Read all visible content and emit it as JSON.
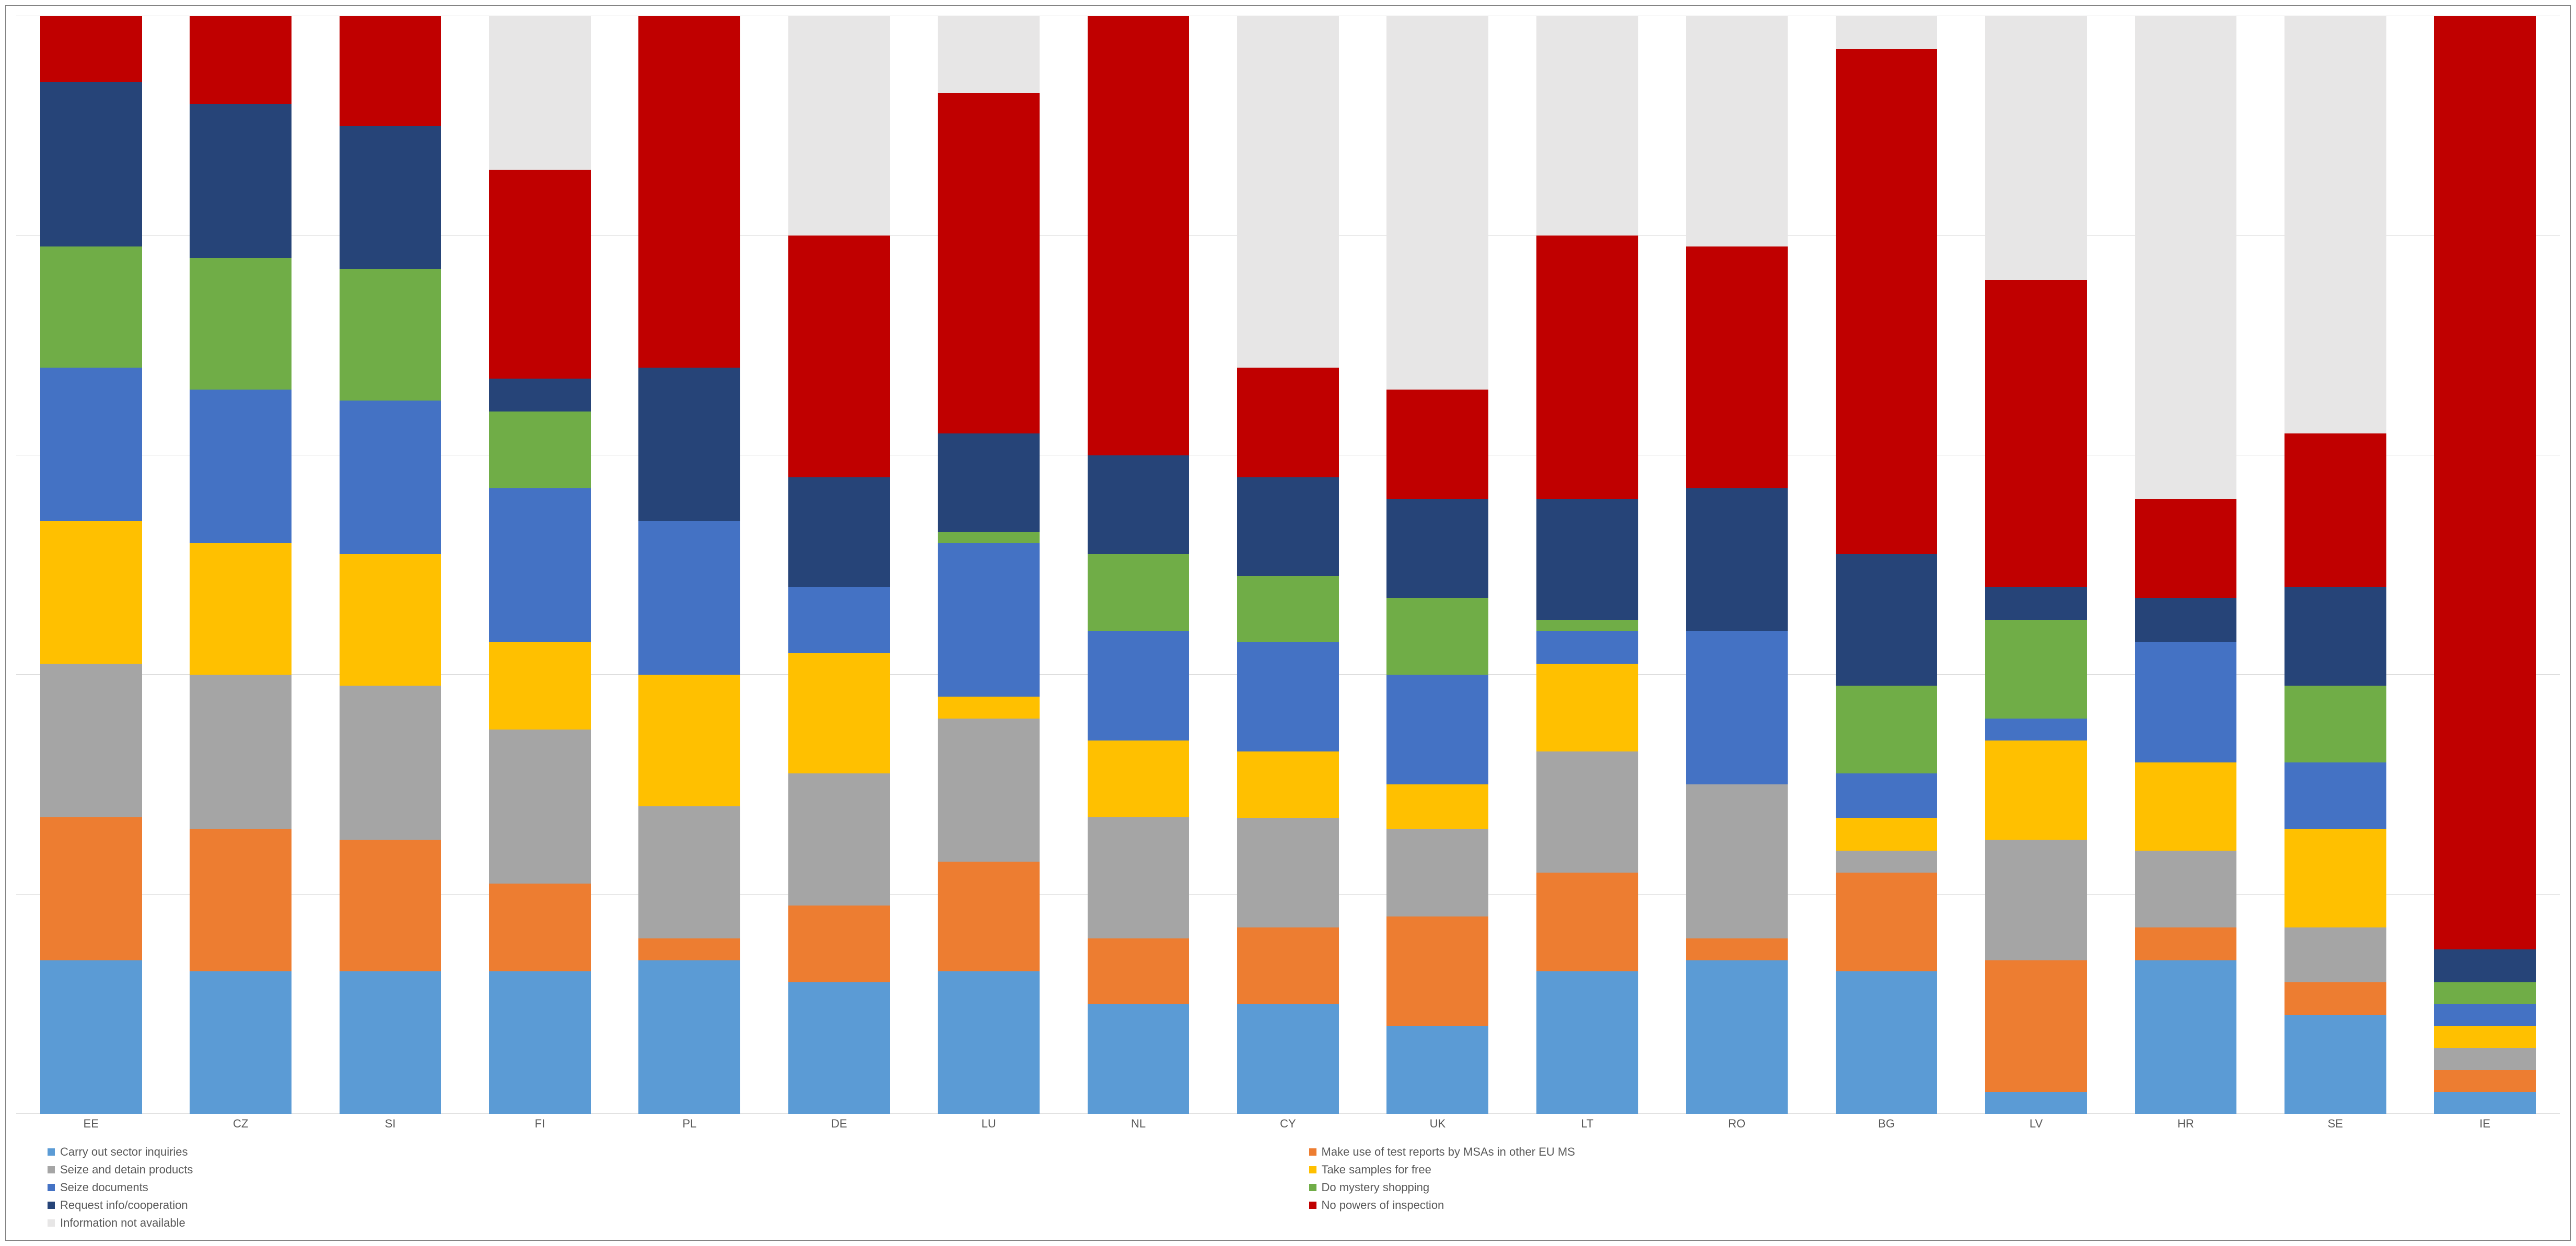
{
  "chart": {
    "type": "stacked-bar",
    "background_color": "#ffffff",
    "grid_color": "#d9d9d9",
    "border_color": "#808080",
    "label_color": "#595959",
    "label_fontsize": 22,
    "ymax": 100,
    "gridlines": [
      0,
      20,
      40,
      60,
      80,
      100
    ],
    "series": [
      {
        "key": "carry_out",
        "label": "Carry out sector inquiries",
        "color": "#5b9bd5"
      },
      {
        "key": "make_use",
        "label": "Make use of test reports by MSAs in other EU MS",
        "color": "#ed7d31"
      },
      {
        "key": "seize_detain",
        "label": "Seize and detain products",
        "color": "#a5a5a5"
      },
      {
        "key": "take_samples",
        "label": "Take samples for free",
        "color": "#ffc000"
      },
      {
        "key": "seize_docs",
        "label": "Seize documents",
        "color": "#4472c4"
      },
      {
        "key": "mystery",
        "label": "Do mystery shopping",
        "color": "#70ad47"
      },
      {
        "key": "request_info",
        "label": "Request info/cooperation",
        "color": "#264478"
      },
      {
        "key": "no_powers",
        "label": "No powers of inspection",
        "color": "#c00000"
      },
      {
        "key": "info_na",
        "label": "Information not available",
        "color": "#e7e6e6"
      }
    ],
    "legend_order": [
      "carry_out",
      "make_use",
      "seize_detain",
      "take_samples",
      "seize_docs",
      "mystery",
      "request_info",
      "no_powers",
      "info_na"
    ],
    "categories": [
      {
        "code": "EE",
        "values": {
          "carry_out": 14,
          "make_use": 13,
          "seize_detain": 14,
          "take_samples": 13,
          "seize_docs": 14,
          "mystery": 11,
          "request_info": 15,
          "no_powers": 6,
          "info_na": 0
        }
      },
      {
        "code": "CZ",
        "values": {
          "carry_out": 13,
          "make_use": 13,
          "seize_detain": 14,
          "take_samples": 12,
          "seize_docs": 14,
          "mystery": 12,
          "request_info": 14,
          "no_powers": 8,
          "info_na": 0
        }
      },
      {
        "code": "SI",
        "values": {
          "carry_out": 13,
          "make_use": 12,
          "seize_detain": 14,
          "take_samples": 12,
          "seize_docs": 14,
          "mystery": 12,
          "request_info": 13,
          "no_powers": 10,
          "info_na": 0
        }
      },
      {
        "code": "FI",
        "values": {
          "carry_out": 13,
          "make_use": 8,
          "seize_detain": 14,
          "take_samples": 8,
          "seize_docs": 14,
          "mystery": 7,
          "request_info": 3,
          "no_powers": 19,
          "info_na": 14
        }
      },
      {
        "code": "PL",
        "values": {
          "carry_out": 14,
          "make_use": 2,
          "seize_detain": 12,
          "take_samples": 12,
          "seize_docs": 14,
          "mystery": 0,
          "request_info": 14,
          "no_powers": 32,
          "info_na": 0
        }
      },
      {
        "code": "DE",
        "values": {
          "carry_out": 12,
          "make_use": 7,
          "seize_detain": 12,
          "take_samples": 11,
          "seize_docs": 6,
          "mystery": 0,
          "request_info": 10,
          "no_powers": 22,
          "info_na": 20
        }
      },
      {
        "code": "LU",
        "values": {
          "carry_out": 13,
          "make_use": 10,
          "seize_detain": 13,
          "take_samples": 2,
          "seize_docs": 14,
          "mystery": 1,
          "request_info": 9,
          "no_powers": 31,
          "info_na": 7
        }
      },
      {
        "code": "NL",
        "values": {
          "carry_out": 10,
          "make_use": 6,
          "seize_detain": 11,
          "take_samples": 7,
          "seize_docs": 10,
          "mystery": 7,
          "request_info": 9,
          "no_powers": 40,
          "info_na": 0
        }
      },
      {
        "code": "CY",
        "values": {
          "carry_out": 10,
          "make_use": 7,
          "seize_detain": 10,
          "take_samples": 6,
          "seize_docs": 10,
          "mystery": 6,
          "request_info": 9,
          "no_powers": 10,
          "info_na": 32
        }
      },
      {
        "code": "UK",
        "values": {
          "carry_out": 8,
          "make_use": 10,
          "seize_detain": 8,
          "take_samples": 4,
          "seize_docs": 10,
          "mystery": 7,
          "request_info": 9,
          "no_powers": 10,
          "info_na": 34
        }
      },
      {
        "code": "LT",
        "values": {
          "carry_out": 13,
          "make_use": 9,
          "seize_detain": 11,
          "take_samples": 8,
          "seize_docs": 3,
          "mystery": 1,
          "request_info": 11,
          "no_powers": 24,
          "info_na": 20
        }
      },
      {
        "code": "RO",
        "values": {
          "carry_out": 14,
          "make_use": 2,
          "seize_detain": 14,
          "take_samples": 0,
          "seize_docs": 14,
          "mystery": 0,
          "request_info": 13,
          "no_powers": 22,
          "info_na": 21
        }
      },
      {
        "code": "BG",
        "values": {
          "carry_out": 13,
          "make_use": 9,
          "seize_detain": 2,
          "take_samples": 3,
          "seize_docs": 4,
          "mystery": 8,
          "request_info": 12,
          "no_powers": 46,
          "info_na": 3
        }
      },
      {
        "code": "LV",
        "values": {
          "carry_out": 2,
          "make_use": 12,
          "seize_detain": 11,
          "take_samples": 9,
          "seize_docs": 2,
          "mystery": 9,
          "request_info": 3,
          "no_powers": 28,
          "info_na": 24
        }
      },
      {
        "code": "HR",
        "values": {
          "carry_out": 14,
          "make_use": 3,
          "seize_detain": 7,
          "take_samples": 8,
          "seize_docs": 11,
          "mystery": 0,
          "request_info": 4,
          "no_powers": 9,
          "info_na": 44
        }
      },
      {
        "code": "SE",
        "values": {
          "carry_out": 9,
          "make_use": 3,
          "seize_detain": 5,
          "take_samples": 9,
          "seize_docs": 6,
          "mystery": 7,
          "request_info": 9,
          "no_powers": 14,
          "info_na": 38
        }
      },
      {
        "code": "IE",
        "values": {
          "carry_out": 2,
          "make_use": 2,
          "seize_detain": 2,
          "take_samples": 2,
          "seize_docs": 2,
          "mystery": 2,
          "request_info": 3,
          "no_powers": 85,
          "info_na": 0
        }
      }
    ]
  }
}
